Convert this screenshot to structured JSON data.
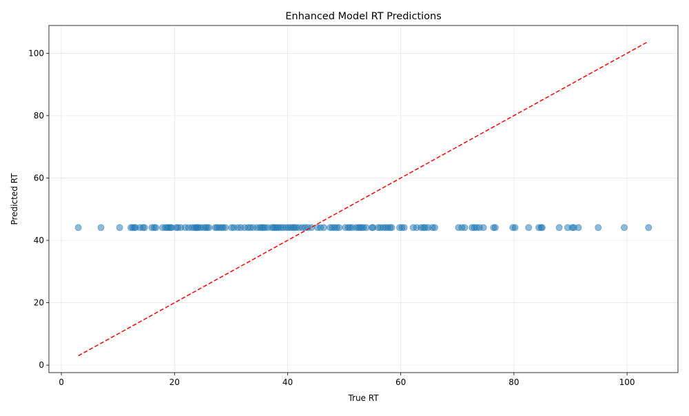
{
  "chart_data": {
    "type": "scatter",
    "title": "Enhanced Model RT Predictions",
    "xlabel": "True RT",
    "ylabel": "Predicted RT",
    "xlim": [
      -2.2,
      109.0
    ],
    "ylim": [
      -2.4,
      108.9
    ],
    "xticks": [
      0,
      20,
      40,
      60,
      80,
      100
    ],
    "yticks": [
      0,
      20,
      40,
      60,
      80,
      100
    ],
    "grid": true,
    "point_color": "#1f77b4",
    "point_alpha": 0.5,
    "reference_line": {
      "x": [
        3.0,
        103.8
      ],
      "y": [
        3.0,
        103.8
      ],
      "color": "#ff0000",
      "style": "dashed"
    },
    "series": [
      {
        "x": [
          3.0,
          7.0,
          10.3,
          12.3,
          12.6,
          12.9,
          13.1,
          13.9,
          14.4,
          14.7,
          16.0,
          16.4,
          16.7,
          17.9,
          18.4,
          18.7,
          19.0,
          19.3,
          19.5,
          20.3,
          20.6,
          21.1,
          21.9,
          22.5,
          23.1,
          23.5,
          23.8,
          24.0,
          24.2,
          24.6,
          25.1,
          25.5,
          25.8,
          26.1,
          27.2,
          27.5,
          27.9,
          28.3,
          28.6,
          29.0,
          30.1,
          30.5,
          31.2,
          31.7,
          32.4,
          33.0,
          33.4,
          33.9,
          34.6,
          35.1,
          35.4,
          35.7,
          36.0,
          36.5,
          37.2,
          37.5,
          37.8,
          38.1,
          38.4,
          38.8,
          39.2,
          39.7,
          40.1,
          40.5,
          40.9,
          41.2,
          41.5,
          42.0,
          42.6,
          43.1,
          43.6,
          44.2,
          45.3,
          45.8,
          46.4,
          47.5,
          47.9,
          48.3,
          48.7,
          49.1,
          50.2,
          50.7,
          51.0,
          51.4,
          52.1,
          52.5,
          52.8,
          53.1,
          53.4,
          53.9,
          54.9,
          55.1,
          56.0,
          56.4,
          56.9,
          57.3,
          57.7,
          58.1,
          58.4,
          59.8,
          60.2,
          60.6,
          62.2,
          62.8,
          63.6,
          64.0,
          64.3,
          64.8,
          65.6,
          66.0,
          70.2,
          70.8,
          71.3,
          72.6,
          73.0,
          73.4,
          73.9,
          74.6,
          76.4,
          76.7,
          79.8,
          80.2,
          82.6,
          84.4,
          84.8,
          85.0,
          88.0,
          89.5,
          90.3,
          90.6,
          91.4,
          94.9,
          99.5,
          103.8
        ],
        "y": 44.1
      }
    ]
  }
}
